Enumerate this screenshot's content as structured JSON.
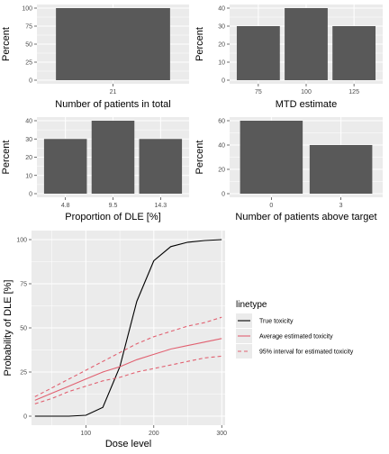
{
  "chart_data": [
    {
      "type": "bar",
      "xlabel": "Number of patients in total",
      "ylabel": "Percent",
      "categories": [
        "21"
      ],
      "values": [
        100
      ],
      "ylim": [
        0,
        100
      ],
      "yticks": [
        "0",
        "25",
        "50",
        "75",
        "100"
      ],
      "bar_color": "#595959",
      "grid": true
    },
    {
      "type": "bar",
      "xlabel": "MTD estimate",
      "ylabel": "Percent",
      "categories": [
        "75",
        "100",
        "125"
      ],
      "values": [
        30,
        40,
        30
      ],
      "ylim": [
        0,
        40
      ],
      "yticks": [
        "0",
        "10",
        "20",
        "30",
        "40"
      ],
      "bar_color": "#595959",
      "grid": true
    },
    {
      "type": "bar",
      "xlabel": "Proportion of DLE [%]",
      "ylabel": "Percent",
      "categories": [
        "4.8",
        "9.5",
        "14.3"
      ],
      "values": [
        30,
        40,
        30
      ],
      "ylim": [
        0,
        40
      ],
      "yticks": [
        "0",
        "10",
        "20",
        "30",
        "40"
      ],
      "bar_color": "#595959",
      "grid": true
    },
    {
      "type": "bar",
      "xlabel": "Number of patients above target",
      "ylabel": "Percent",
      "categories": [
        "0",
        "3"
      ],
      "values": [
        60,
        40
      ],
      "ylim": [
        0,
        60
      ],
      "yticks": [
        "0",
        "20",
        "40",
        "60"
      ],
      "bar_color": "#595959",
      "grid": true
    },
    {
      "type": "line",
      "xlabel": "Dose level",
      "ylabel": "Probability of DLE [%]",
      "xlim": [
        20,
        305
      ],
      "ylim": [
        0,
        100
      ],
      "xticks": [
        "100",
        "200",
        "300"
      ],
      "yticks": [
        "0",
        "25",
        "50",
        "75",
        "100"
      ],
      "grid": true,
      "legend": {
        "title": "linetype",
        "position": "right"
      },
      "series": [
        {
          "name": "True toxicity",
          "color": "#000000",
          "dash": "solid",
          "x": [
            25,
            50,
            75,
            100,
            125,
            150,
            175,
            200,
            225,
            250,
            275,
            300
          ],
          "y": [
            0,
            0,
            0,
            0.5,
            5,
            28,
            65,
            88,
            96,
            98.5,
            99.5,
            100
          ]
        },
        {
          "name": "Average estimated toxicity",
          "color": "#E16070",
          "dash": "solid",
          "x": [
            25,
            50,
            75,
            100,
            125,
            150,
            175,
            200,
            225,
            250,
            275,
            300
          ],
          "y": [
            9,
            13,
            17,
            21,
            25,
            28,
            32,
            35,
            38,
            40,
            42,
            44
          ]
        },
        {
          "name": "95% interval for estimated toxicity",
          "color": "#E16070",
          "dash": "dashed",
          "x": [
            25,
            50,
            75,
            100,
            125,
            150,
            175,
            200,
            225,
            250,
            275,
            300
          ],
          "y": [
            11,
            16,
            21,
            26,
            31,
            36,
            41,
            45,
            48,
            51,
            53,
            56
          ]
        },
        {
          "name": "",
          "color": "#E16070",
          "dash": "dashed",
          "x": [
            25,
            50,
            75,
            100,
            125,
            150,
            175,
            200,
            225,
            250,
            275,
            300
          ],
          "y": [
            7,
            10,
            14,
            17,
            20,
            22,
            25,
            27,
            29,
            31,
            33,
            34
          ]
        }
      ]
    }
  ]
}
